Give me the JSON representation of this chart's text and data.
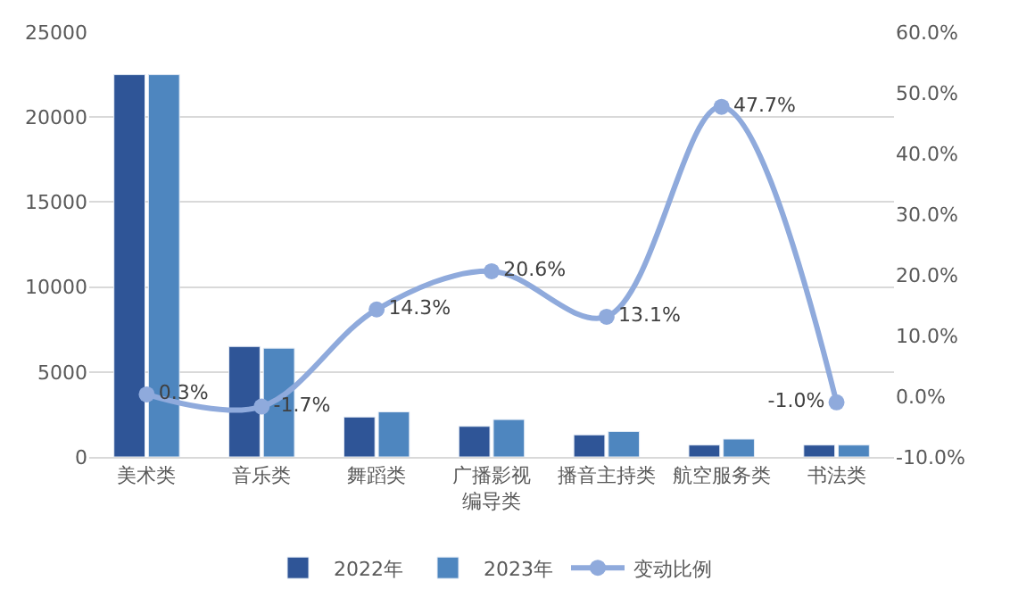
{
  "chart_data": {
    "type": "bar",
    "categories": [
      "美术类",
      "音乐类",
      "舞蹈类",
      "广播影视编导类",
      "播音主持类",
      "航空服务类",
      "书法类"
    ],
    "series": [
      {
        "name": "2022年",
        "color": "#2f5597",
        "values": [
          22500,
          6500,
          2350,
          1800,
          1300,
          700,
          700
        ]
      },
      {
        "name": "2023年",
        "color": "#4e86bf",
        "values": [
          22500,
          6400,
          2650,
          2200,
          1500,
          1050,
          700
        ]
      },
      {
        "name": "变动比例",
        "type": "line",
        "axis": "y2",
        "color": "#8faadc",
        "marker": "circle",
        "line_style": "solid",
        "values": [
          0.3,
          -1.7,
          14.3,
          20.6,
          13.1,
          47.7,
          -1.0
        ],
        "value_labels": [
          "0.3%",
          "-1.7%",
          "14.3%",
          "20.6%",
          "13.1%",
          "47.7%",
          "-1.0%"
        ]
      }
    ],
    "ylim": [
      0,
      25000
    ],
    "yticks": [
      0,
      5000,
      10000,
      15000,
      20000,
      25000
    ],
    "y2lim": [
      -10,
      60
    ],
    "y2ticks": [
      {
        "value": -10,
        "label": "-10.0%"
      },
      {
        "value": 0,
        "label": "0.0%"
      },
      {
        "value": 10,
        "label": "10.0%"
      },
      {
        "value": 20,
        "label": "20.0%"
      },
      {
        "value": 30,
        "label": "30.0%"
      },
      {
        "value": 40,
        "label": "40.0%"
      },
      {
        "value": 50,
        "label": "50.0%"
      },
      {
        "value": 60,
        "label": "60.0%"
      }
    ],
    "grid": "y",
    "legend": "bottom"
  }
}
